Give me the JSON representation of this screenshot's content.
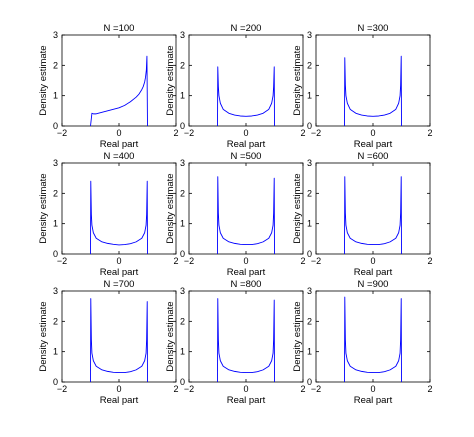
{
  "chart_data": [
    {
      "type": "line",
      "title": "N =100",
      "xlabel": "Real part",
      "ylabel": "Density estimate",
      "xlim": [
        -2,
        2
      ],
      "ylim": [
        0,
        3
      ],
      "xticks": [
        "−2",
        "0",
        "2"
      ],
      "yticks": [
        "0",
        "1",
        "2",
        "3"
      ],
      "grid": false,
      "line_color": "#0000ff",
      "x": [
        -1.0,
        -0.95,
        -0.9,
        -0.8,
        -0.6,
        -0.4,
        -0.2,
        0,
        0.2,
        0.4,
        0.6,
        0.7,
        0.8,
        0.85,
        0.9,
        0.93,
        0.96,
        0.98,
        1.0
      ],
      "y": [
        0.0,
        0.42,
        0.4,
        0.4,
        0.45,
        0.5,
        0.55,
        0.6,
        0.68,
        0.8,
        0.95,
        1.05,
        1.2,
        1.3,
        1.45,
        1.6,
        1.85,
        2.3,
        0.0
      ]
    },
    {
      "type": "line",
      "title": "N =200",
      "xlabel": "Real part",
      "ylabel": "Density estimate",
      "xlim": [
        -2,
        2
      ],
      "ylim": [
        0,
        3
      ],
      "xticks": [
        "−2",
        "0",
        "2"
      ],
      "yticks": [
        "0",
        "1",
        "2",
        "3"
      ],
      "grid": false,
      "line_color": "#0000ff",
      "x": [
        -1.0,
        -0.99,
        -0.97,
        -0.95,
        -0.9,
        -0.8,
        -0.6,
        -0.4,
        -0.2,
        0,
        0.2,
        0.4,
        0.6,
        0.8,
        0.9,
        0.95,
        0.97,
        0.99,
        1.0
      ],
      "y": [
        0.0,
        1.95,
        1.3,
        1.0,
        0.75,
        0.55,
        0.42,
        0.36,
        0.33,
        0.32,
        0.33,
        0.36,
        0.42,
        0.55,
        0.75,
        1.0,
        1.3,
        1.95,
        0.0
      ]
    },
    {
      "type": "line",
      "title": "N =300",
      "xlabel": "Real part",
      "ylabel": "Density estimate",
      "xlim": [
        -2,
        2
      ],
      "ylim": [
        0,
        3
      ],
      "xticks": [
        "−2",
        "0",
        "2"
      ],
      "yticks": [
        "0",
        "1",
        "2",
        "3"
      ],
      "grid": false,
      "line_color": "#0000ff",
      "x": [
        -1.0,
        -0.99,
        -0.97,
        -0.95,
        -0.9,
        -0.8,
        -0.6,
        -0.4,
        -0.2,
        0,
        0.2,
        0.4,
        0.6,
        0.8,
        0.9,
        0.95,
        0.97,
        0.99,
        1.0
      ],
      "y": [
        0.0,
        2.25,
        1.35,
        1.0,
        0.75,
        0.55,
        0.42,
        0.36,
        0.33,
        0.32,
        0.33,
        0.36,
        0.42,
        0.55,
        0.75,
        1.0,
        1.35,
        2.3,
        0.0
      ]
    },
    {
      "type": "line",
      "title": "N =400",
      "xlabel": "Real part",
      "ylabel": "Density estimate",
      "xlim": [
        -2,
        2
      ],
      "ylim": [
        0,
        3
      ],
      "xticks": [
        "−2",
        "0",
        "2"
      ],
      "yticks": [
        "0",
        "1",
        "2",
        "3"
      ],
      "grid": false,
      "line_color": "#0000ff",
      "x": [
        -1.0,
        -0.99,
        -0.97,
        -0.95,
        -0.9,
        -0.8,
        -0.6,
        -0.4,
        -0.2,
        0,
        0.2,
        0.4,
        0.6,
        0.8,
        0.9,
        0.95,
        0.97,
        0.99,
        1.0
      ],
      "y": [
        0.0,
        2.4,
        1.3,
        0.95,
        0.7,
        0.52,
        0.4,
        0.35,
        0.32,
        0.3,
        0.31,
        0.34,
        0.4,
        0.52,
        0.7,
        0.95,
        1.3,
        2.4,
        0.0
      ]
    },
    {
      "type": "line",
      "title": "N =500",
      "xlabel": "Real part",
      "ylabel": "Density estimate",
      "xlim": [
        -2,
        2
      ],
      "ylim": [
        0,
        3
      ],
      "xticks": [
        "−2",
        "0",
        "2"
      ],
      "yticks": [
        "0",
        "1",
        "2",
        "3"
      ],
      "grid": false,
      "line_color": "#0000ff",
      "x": [
        -1.0,
        -0.99,
        -0.97,
        -0.95,
        -0.9,
        -0.8,
        -0.6,
        -0.4,
        -0.2,
        0,
        0.2,
        0.4,
        0.6,
        0.8,
        0.9,
        0.95,
        0.97,
        0.99,
        1.0
      ],
      "y": [
        0.0,
        2.55,
        1.35,
        0.95,
        0.7,
        0.52,
        0.4,
        0.35,
        0.32,
        0.31,
        0.31,
        0.34,
        0.4,
        0.52,
        0.7,
        0.95,
        1.35,
        2.5,
        0.0
      ]
    },
    {
      "type": "line",
      "title": "N =600",
      "xlabel": "Real part",
      "ylabel": "Density estimate",
      "xlim": [
        -2,
        2
      ],
      "ylim": [
        0,
        3
      ],
      "xticks": [
        "−2",
        "0",
        "2"
      ],
      "yticks": [
        "0",
        "1",
        "2",
        "3"
      ],
      "grid": false,
      "line_color": "#0000ff",
      "x": [
        -1.0,
        -0.99,
        -0.97,
        -0.95,
        -0.9,
        -0.8,
        -0.6,
        -0.4,
        -0.2,
        0,
        0.2,
        0.4,
        0.6,
        0.8,
        0.9,
        0.95,
        0.97,
        0.99,
        1.0
      ],
      "y": [
        0.0,
        2.55,
        1.35,
        0.95,
        0.7,
        0.52,
        0.4,
        0.35,
        0.32,
        0.31,
        0.31,
        0.34,
        0.4,
        0.52,
        0.7,
        0.95,
        1.35,
        2.55,
        0.0
      ]
    },
    {
      "type": "line",
      "title": "N =700",
      "xlabel": "Real part",
      "ylabel": "Density estimate",
      "xlim": [
        -2,
        2
      ],
      "ylim": [
        0,
        3
      ],
      "xticks": [
        "−2",
        "0",
        "2"
      ],
      "yticks": [
        "0",
        "1",
        "2",
        "3"
      ],
      "grid": false,
      "line_color": "#0000ff",
      "x": [
        -1.0,
        -0.99,
        -0.97,
        -0.95,
        -0.9,
        -0.8,
        -0.6,
        -0.4,
        -0.2,
        0,
        0.2,
        0.4,
        0.6,
        0.8,
        0.9,
        0.95,
        0.97,
        0.99,
        1.0
      ],
      "y": [
        0.0,
        2.75,
        1.4,
        0.95,
        0.7,
        0.52,
        0.4,
        0.35,
        0.32,
        0.31,
        0.31,
        0.34,
        0.4,
        0.52,
        0.7,
        0.95,
        1.4,
        2.65,
        0.0
      ]
    },
    {
      "type": "line",
      "title": "N =800",
      "xlabel": "Real part",
      "ylabel": "Density estimate",
      "xlim": [
        -2,
        2
      ],
      "ylim": [
        0,
        3
      ],
      "xticks": [
        "−2",
        "0",
        "2"
      ],
      "yticks": [
        "0",
        "1",
        "2",
        "3"
      ],
      "grid": false,
      "line_color": "#0000ff",
      "x": [
        -1.0,
        -0.99,
        -0.97,
        -0.95,
        -0.9,
        -0.8,
        -0.6,
        -0.4,
        -0.2,
        0,
        0.2,
        0.4,
        0.6,
        0.8,
        0.9,
        0.95,
        0.97,
        0.99,
        1.0
      ],
      "y": [
        0.0,
        2.75,
        1.4,
        0.95,
        0.7,
        0.52,
        0.4,
        0.35,
        0.32,
        0.31,
        0.31,
        0.34,
        0.4,
        0.52,
        0.7,
        0.95,
        1.4,
        2.7,
        0.0
      ]
    },
    {
      "type": "line",
      "title": "N =900",
      "xlabel": "Real part",
      "ylabel": "Density estimate",
      "xlim": [
        -2,
        2
      ],
      "ylim": [
        0,
        3
      ],
      "xticks": [
        "−2",
        "0",
        "2"
      ],
      "yticks": [
        "0",
        "1",
        "2",
        "3"
      ],
      "grid": false,
      "line_color": "#0000ff",
      "x": [
        -1.0,
        -0.99,
        -0.97,
        -0.95,
        -0.9,
        -0.8,
        -0.6,
        -0.4,
        -0.2,
        0,
        0.2,
        0.4,
        0.6,
        0.8,
        0.9,
        0.95,
        0.97,
        0.99,
        1.0
      ],
      "y": [
        0.0,
        2.8,
        1.4,
        0.95,
        0.7,
        0.52,
        0.4,
        0.35,
        0.32,
        0.31,
        0.31,
        0.34,
        0.4,
        0.52,
        0.7,
        0.95,
        1.4,
        2.75,
        0.0
      ]
    }
  ]
}
